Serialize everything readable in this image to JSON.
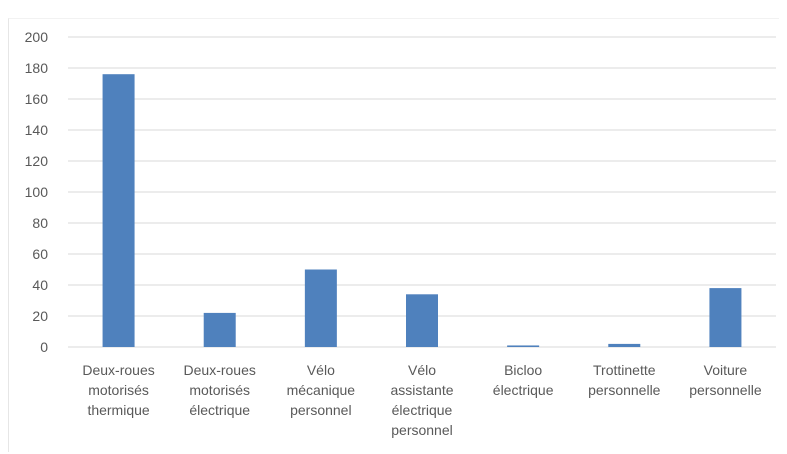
{
  "chart_data": {
    "type": "bar",
    "title": "",
    "xlabel": "",
    "ylabel": "",
    "ylim": [
      0,
      200
    ],
    "yticks": [
      0,
      20,
      40,
      60,
      80,
      100,
      120,
      140,
      160,
      180,
      200
    ],
    "grid": true,
    "legend": "none",
    "categories": [
      [
        "Deux-roues",
        "motorisés",
        "thermique"
      ],
      [
        "Deux-roues",
        "motorisés",
        "électrique"
      ],
      [
        "Vélo",
        "mécanique",
        "personnel"
      ],
      [
        "Vélo",
        "assistante",
        "électrique",
        "personnel"
      ],
      [
        "Bicloo",
        "électrique"
      ],
      [
        "Trottinette",
        "personnelle"
      ],
      [
        "Voiture",
        "personnelle"
      ]
    ],
    "values": [
      176,
      22,
      50,
      34,
      1,
      2,
      38
    ],
    "bar_color": "#4F81BD",
    "grid_color": "#D9D9D9"
  }
}
